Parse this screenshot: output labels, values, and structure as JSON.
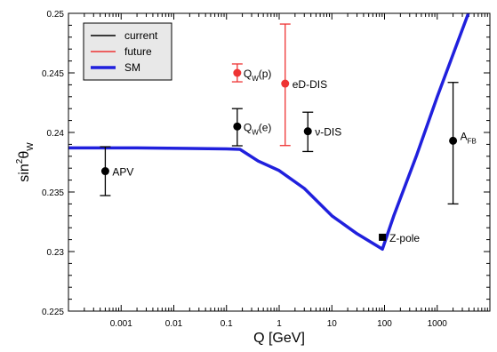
{
  "chart_data": {
    "type": "scatter",
    "xscale": "log",
    "xlim": [
      0.0001,
      10000
    ],
    "ylim": [
      0.225,
      0.25
    ],
    "xlabel": "Q [GeV]",
    "ylabel": {
      "base": "sin",
      "sup": "2",
      "mid": "θ",
      "sub": "W"
    },
    "xticks": [
      {
        "value": 0.001,
        "label": "0.001"
      },
      {
        "value": 0.01,
        "label": "0.01"
      },
      {
        "value": 0.1,
        "label": "0.1"
      },
      {
        "value": 1,
        "label": "1"
      },
      {
        "value": 10,
        "label": "10"
      },
      {
        "value": 100,
        "label": "100"
      },
      {
        "value": 1000,
        "label": "1000"
      }
    ],
    "yticks": [
      {
        "value": 0.225,
        "label": "0.225"
      },
      {
        "value": 0.23,
        "label": "0.23"
      },
      {
        "value": 0.235,
        "label": "0.235"
      },
      {
        "value": 0.24,
        "label": "0.24"
      },
      {
        "value": 0.245,
        "label": "0.245"
      },
      {
        "value": 0.25,
        "label": "0.25"
      }
    ],
    "legend": {
      "placement": "top-left",
      "entries": [
        {
          "label": "current",
          "color": "#000000"
        },
        {
          "label": "future",
          "color": "#ee3333"
        },
        {
          "label": "SM",
          "color": "#2020dd"
        }
      ]
    },
    "sm_curve": {
      "name": "SM",
      "color": "#2020dd",
      "x": [
        0.0001,
        0.002,
        0.02,
        0.1,
        0.18,
        0.4,
        1,
        3,
        10,
        30,
        91,
        150,
        400,
        1000,
        3900
      ],
      "y": [
        0.2387,
        0.2387,
        0.23866,
        0.23862,
        0.23858,
        0.2376,
        0.2368,
        0.2353,
        0.233,
        0.2315,
        0.2302,
        0.233,
        0.238,
        0.243,
        0.25
      ]
    },
    "points": [
      {
        "id": "apv",
        "label": "APV",
        "x": 0.0005,
        "y": 0.23675,
        "err_low": 0.2347,
        "err_high": 0.2388,
        "series": "current",
        "marker": "circle"
      },
      {
        "id": "qwe",
        "label": "Q",
        "label_sub": "W",
        "label_rest": "(e)",
        "x": 0.16,
        "y": 0.2405,
        "err_low": 0.23888,
        "err_high": 0.242,
        "series": "current",
        "marker": "circle"
      },
      {
        "id": "nudis",
        "label": "ν-DIS",
        "x": 3.5,
        "y": 0.2401,
        "err_low": 0.2384,
        "err_high": 0.2417,
        "series": "current",
        "marker": "circle"
      },
      {
        "id": "zpole",
        "label": "Z-pole",
        "x": 91,
        "y": 0.2312,
        "err_low": null,
        "err_high": null,
        "series": "current",
        "marker": "square"
      },
      {
        "id": "afb",
        "label": "A",
        "label_sub": "FB",
        "x": 2000,
        "y": 0.2393,
        "err_low": 0.234,
        "err_high": 0.2442,
        "series": "current",
        "marker": "circle"
      },
      {
        "id": "qwp",
        "label": "Q",
        "label_sub": "W",
        "label_rest": "(p)",
        "x": 0.16,
        "y": 0.245,
        "err_low": 0.24425,
        "err_high": 0.24575,
        "series": "future",
        "marker": "circle"
      },
      {
        "id": "eddis",
        "label": "eD-DIS",
        "x": 1.3,
        "y": 0.2441,
        "err_low": 0.2389,
        "err_high": 0.2491,
        "series": "future",
        "marker": "circle"
      }
    ]
  }
}
